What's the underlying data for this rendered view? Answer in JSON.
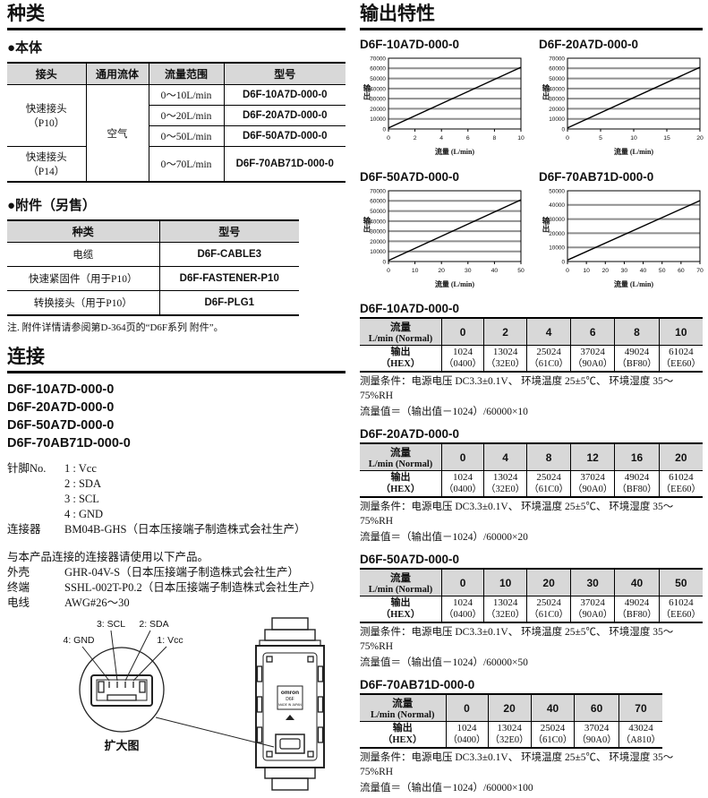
{
  "colors": {
    "table_header_bg": "#d8d8d8",
    "grid_line": "#8f8f8f",
    "rule": "#000000",
    "line": "#000000"
  },
  "left": {
    "types_title": "种类",
    "body_subtitle": "●本体",
    "body_table": {
      "headers": [
        "接头",
        "通用流体",
        "流量范围",
        "型号"
      ],
      "connector_p10": "快速接头\n（P10）",
      "connector_p14": "快速接头\n（P14）",
      "fluid": "空气",
      "rows": [
        {
          "range": "0～10L/min",
          "model": "D6F-10A7D-000-0"
        },
        {
          "range": "0～20L/min",
          "model": "D6F-20A7D-000-0"
        },
        {
          "range": "0～50L/min",
          "model": "D6F-50A7D-000-0"
        },
        {
          "range": "0～70L/min",
          "model": "D6F-70AB71D-000-0"
        }
      ]
    },
    "acc_subtitle": "●附件（另售）",
    "acc_table": {
      "headers": [
        "种类",
        "型号"
      ],
      "rows": [
        {
          "kind": "电缆",
          "model": "D6F-CABLE3"
        },
        {
          "kind": "快速紧固件（用于P10）",
          "model": "D6F-FASTENER-P10"
        },
        {
          "kind": "转换接头（用于P10）",
          "model": "D6F-PLG1"
        }
      ]
    },
    "acc_note": "注. 附件详情请参阅第D-364页的“D6F系列 附件”。",
    "connect_title": "连接",
    "connect_models": [
      "D6F-10A7D-000-0",
      "D6F-20A7D-000-0",
      "D6F-50A7D-000-0",
      "D6F-70AB71D-000-0"
    ],
    "pins_label": "针脚No.",
    "pins": [
      "1 : Vcc",
      "2 : SDA",
      "3 : SCL",
      "4 : GND"
    ],
    "connector_label": "连接器",
    "connector_value": "BM04B-GHS（日本压接端子制造株式会社生产）",
    "mating_note": "与本产品连接的连接器请使用以下产品。",
    "housing_label": "外壳",
    "housing_value": "GHR-04V-S（日本压接端子制造株式会社生产）",
    "terminal_label": "终端",
    "terminal_value": "SSHL-002T-P0.2（日本压接端子制造株式会社生产）",
    "wire_label": "电线",
    "wire_value": "AWG#26～30",
    "diagram": {
      "pin_labels": [
        "4: GND",
        "3: SCL",
        "2: SDA",
        "1: Vcc"
      ],
      "caption": "扩大图",
      "brand_lines": [
        "omron",
        "D6F",
        "MADE IN JAPAN"
      ]
    }
  },
  "right": {
    "section_title": "输出特性",
    "table_labels": {
      "flow_1": "流量",
      "flow_2": "L/min (Normal)",
      "out_1": "输出",
      "out_2": "（HEX）"
    }
  },
  "chart_data": [
    {
      "type": "line",
      "title": "D6F-10A7D-000-0",
      "xlabel": "流量 (L/min)",
      "ylabel": "输出",
      "xlim": [
        0,
        10
      ],
      "ylim": [
        0,
        70000
      ],
      "xticks": [
        0,
        2,
        4,
        6,
        8,
        10
      ],
      "yticks": [
        0,
        10000,
        20000,
        30000,
        40000,
        50000,
        60000,
        70000
      ],
      "grid": true,
      "x": [
        0,
        10
      ],
      "y": [
        1024,
        61024
      ]
    },
    {
      "type": "line",
      "title": "D6F-20A7D-000-0",
      "xlabel": "流量 (L/min)",
      "ylabel": "输出",
      "xlim": [
        0,
        20
      ],
      "ylim": [
        0,
        70000
      ],
      "xticks": [
        0,
        5,
        10,
        15,
        20
      ],
      "yticks": [
        0,
        10000,
        20000,
        30000,
        40000,
        50000,
        60000,
        70000
      ],
      "grid": true,
      "x": [
        0,
        20
      ],
      "y": [
        1024,
        61024
      ]
    },
    {
      "type": "line",
      "title": "D6F-50A7D-000-0",
      "xlabel": "流量 (L/min)",
      "ylabel": "输出",
      "xlim": [
        0,
        50
      ],
      "ylim": [
        0,
        70000
      ],
      "xticks": [
        0,
        10,
        20,
        30,
        40,
        50
      ],
      "yticks": [
        0,
        10000,
        20000,
        30000,
        40000,
        50000,
        60000,
        70000
      ],
      "grid": true,
      "x": [
        0,
        50
      ],
      "y": [
        1024,
        61024
      ]
    },
    {
      "type": "line",
      "title": "D6F-70AB71D-000-0",
      "xlabel": "流量 (L/min)",
      "ylabel": "输出",
      "xlim": [
        0,
        70
      ],
      "ylim": [
        0,
        50000
      ],
      "xticks": [
        0,
        10,
        20,
        30,
        40,
        50,
        60,
        70
      ],
      "yticks": [
        0,
        10000,
        20000,
        30000,
        40000,
        50000
      ],
      "grid": true,
      "x": [
        0,
        70
      ],
      "y": [
        1024,
        43024
      ]
    }
  ],
  "output_tables": [
    {
      "title": "D6F-10A7D-000-0",
      "flows": [
        "0",
        "2",
        "4",
        "6",
        "8",
        "10"
      ],
      "outputs": [
        {
          "dec": "1024",
          "hex": "（0400）"
        },
        {
          "dec": "13024",
          "hex": "（32E0）"
        },
        {
          "dec": "25024",
          "hex": "（61C0）"
        },
        {
          "dec": "37024",
          "hex": "（90A0）"
        },
        {
          "dec": "49024",
          "hex": "（BF80）"
        },
        {
          "dec": "61024",
          "hex": "（EE60）"
        }
      ],
      "condition": "测量条件：电源电压 DC3.3±0.1V、 环境温度 25±5℃、 环境湿度 35～75%RH",
      "formula": "流量值＝（输出值－1024）/60000×10"
    },
    {
      "title": "D6F-20A7D-000-0",
      "flows": [
        "0",
        "4",
        "8",
        "12",
        "16",
        "20"
      ],
      "outputs": [
        {
          "dec": "1024",
          "hex": "（0400）"
        },
        {
          "dec": "13024",
          "hex": "（32E0）"
        },
        {
          "dec": "25024",
          "hex": "（61C0）"
        },
        {
          "dec": "37024",
          "hex": "（90A0）"
        },
        {
          "dec": "49024",
          "hex": "（BF80）"
        },
        {
          "dec": "61024",
          "hex": "（EE60）"
        }
      ],
      "condition": "测量条件：电源电压 DC3.3±0.1V、 环境温度 25±5℃、 环境湿度 35～75%RH",
      "formula": "流量值＝（输出值－1024）/60000×20"
    },
    {
      "title": "D6F-50A7D-000-0",
      "flows": [
        "0",
        "10",
        "20",
        "30",
        "40",
        "50"
      ],
      "outputs": [
        {
          "dec": "1024",
          "hex": "（0400）"
        },
        {
          "dec": "13024",
          "hex": "（32E0）"
        },
        {
          "dec": "25024",
          "hex": "（61C0）"
        },
        {
          "dec": "37024",
          "hex": "（90A0）"
        },
        {
          "dec": "49024",
          "hex": "（BF80）"
        },
        {
          "dec": "61024",
          "hex": "（EE60）"
        }
      ],
      "condition": "测量条件：电源电压 DC3.3±0.1V、 环境温度 25±5℃、 环境湿度 35～75%RH",
      "formula": "流量值＝（输出值－1024）/60000×50"
    },
    {
      "title": "D6F-70AB71D-000-0",
      "flows": [
        "0",
        "20",
        "40",
        "60",
        "70"
      ],
      "outputs": [
        {
          "dec": "1024",
          "hex": "（0400）"
        },
        {
          "dec": "13024",
          "hex": "（32E0）"
        },
        {
          "dec": "25024",
          "hex": "（61C0）"
        },
        {
          "dec": "37024",
          "hex": "（90A0）"
        },
        {
          "dec": "43024",
          "hex": "（A810）"
        }
      ],
      "condition": "测量条件：电源电压 DC3.3±0.1V、 环境温度 25±5℃、 环境湿度 35～75%RH",
      "formula": "流量值＝（输出值－1024）/60000×100"
    }
  ]
}
